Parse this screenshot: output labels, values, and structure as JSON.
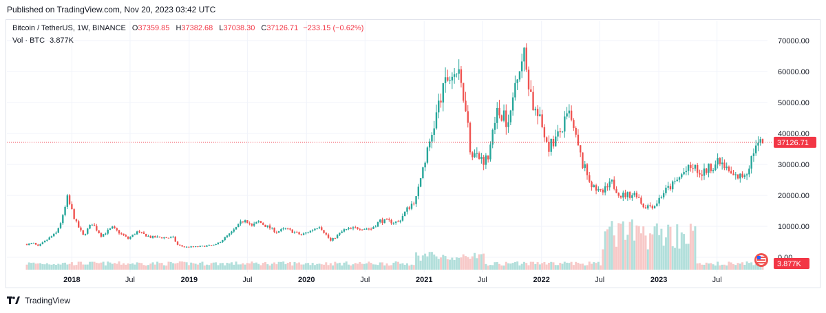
{
  "header": {
    "published": "Published on TradingView.com, Nov 20, 2023 03:42 UTC"
  },
  "legend": {
    "symbol": "Bitcoin / TetherUS, 1W, BINANCE",
    "open_label": "O",
    "open": "37359.85",
    "high_label": "H",
    "high": "37382.68",
    "low_label": "L",
    "low": "37038.30",
    "close_label": "C",
    "close": "37126.71",
    "change": "−233.15 (−0.62%)",
    "vol_label": "Vol · BTC",
    "vol_value": "3.877K"
  },
  "footer": {
    "brand": "TradingView"
  },
  "colors": {
    "up": "#26a69a",
    "down": "#ef5350",
    "vol_up": "#b2dfdb",
    "vol_down": "#f7c9c8",
    "price_line": "#f23645",
    "grid": "#f0f3fa"
  },
  "chart_data": {
    "type": "candlestick",
    "title": "Bitcoin / TetherUS, 1W, BINANCE",
    "current_price": 37126.71,
    "current_price_label": "37126.71",
    "current_volume_label": "3.877K",
    "y_ticks": [
      0,
      10000,
      20000,
      30000,
      40000,
      50000,
      60000,
      70000
    ],
    "y_tick_labels": [
      "0.00",
      "10000.00",
      "20000.00",
      "30000.00",
      "40000.00",
      "50000.00",
      "60000.00",
      "70000.00"
    ],
    "x_tick_labels": [
      "2018",
      "Jul",
      "2019",
      "Jul",
      "2020",
      "Jul",
      "2021",
      "Jul",
      "2022",
      "Jul",
      "2023",
      "Jul"
    ],
    "price_anchors": [
      [
        "2017-08-14",
        4200
      ],
      [
        "2017-09-04",
        4500
      ],
      [
        "2017-09-18",
        3500
      ],
      [
        "2017-10-16",
        5700
      ],
      [
        "2017-11-13",
        7800
      ],
      [
        "2017-12-04",
        13000
      ],
      [
        "2017-12-18",
        19000
      ],
      [
        "2018-01-01",
        15000
      ],
      [
        "2018-01-15",
        11000
      ],
      [
        "2018-02-05",
        7000
      ],
      [
        "2018-03-05",
        11000
      ],
      [
        "2018-04-02",
        7000
      ],
      [
        "2018-05-07",
        9500
      ],
      [
        "2018-06-25",
        6000
      ],
      [
        "2018-07-23",
        8200
      ],
      [
        "2018-09-03",
        6500
      ],
      [
        "2018-11-12",
        6300
      ],
      [
        "2018-11-26",
        4000
      ],
      [
        "2018-12-17",
        3300
      ],
      [
        "2019-01-28",
        3400
      ],
      [
        "2019-03-25",
        4000
      ],
      [
        "2019-05-13",
        8000
      ],
      [
        "2019-06-24",
        12500
      ],
      [
        "2019-07-15",
        10000
      ],
      [
        "2019-08-05",
        11500
      ],
      [
        "2019-09-30",
        8200
      ],
      [
        "2019-10-28",
        9200
      ],
      [
        "2019-12-16",
        7200
      ],
      [
        "2020-01-13",
        8500
      ],
      [
        "2020-02-10",
        10200
      ],
      [
        "2020-03-16",
        5300
      ],
      [
        "2020-04-27",
        8800
      ],
      [
        "2020-06-08",
        9500
      ],
      [
        "2020-07-20",
        9200
      ],
      [
        "2020-08-17",
        11800
      ],
      [
        "2020-10-12",
        11300
      ],
      [
        "2020-11-09",
        15500
      ],
      [
        "2020-12-07",
        19000
      ],
      [
        "2020-12-28",
        29000
      ],
      [
        "2021-01-11",
        34000
      ],
      [
        "2021-02-15",
        49000
      ],
      [
        "2021-03-15",
        58000
      ],
      [
        "2021-04-12",
        60000
      ],
      [
        "2021-05-10",
        50000
      ],
      [
        "2021-05-24",
        35000
      ],
      [
        "2021-06-21",
        32000
      ],
      [
        "2021-07-19",
        31500
      ],
      [
        "2021-08-09",
        46000
      ],
      [
        "2021-09-06",
        47000
      ],
      [
        "2021-09-20",
        42000
      ],
      [
        "2021-10-18",
        61000
      ],
      [
        "2021-11-08",
        65000
      ],
      [
        "2021-12-06",
        49000
      ],
      [
        "2022-01-03",
        42000
      ],
      [
        "2022-01-24",
        36000
      ],
      [
        "2022-02-21",
        39000
      ],
      [
        "2022-03-28",
        46000
      ],
      [
        "2022-05-09",
        30000
      ],
      [
        "2022-06-13",
        22000
      ],
      [
        "2022-07-11",
        21000
      ],
      [
        "2022-08-08",
        24000
      ],
      [
        "2022-09-05",
        20000
      ],
      [
        "2022-10-24",
        20500
      ],
      [
        "2022-11-14",
        16500
      ],
      [
        "2022-12-19",
        16800
      ],
      [
        "2023-01-16",
        21000
      ],
      [
        "2023-02-20",
        24000
      ],
      [
        "2023-03-20",
        27500
      ],
      [
        "2023-04-17",
        29000
      ],
      [
        "2023-05-15",
        27000
      ],
      [
        "2023-06-19",
        30000
      ],
      [
        "2023-07-10",
        30500
      ],
      [
        "2023-08-21",
        26000
      ],
      [
        "2023-09-11",
        26000
      ],
      [
        "2023-10-02",
        27800
      ],
      [
        "2023-10-23",
        34500
      ],
      [
        "2023-11-20",
        37126
      ]
    ]
  }
}
